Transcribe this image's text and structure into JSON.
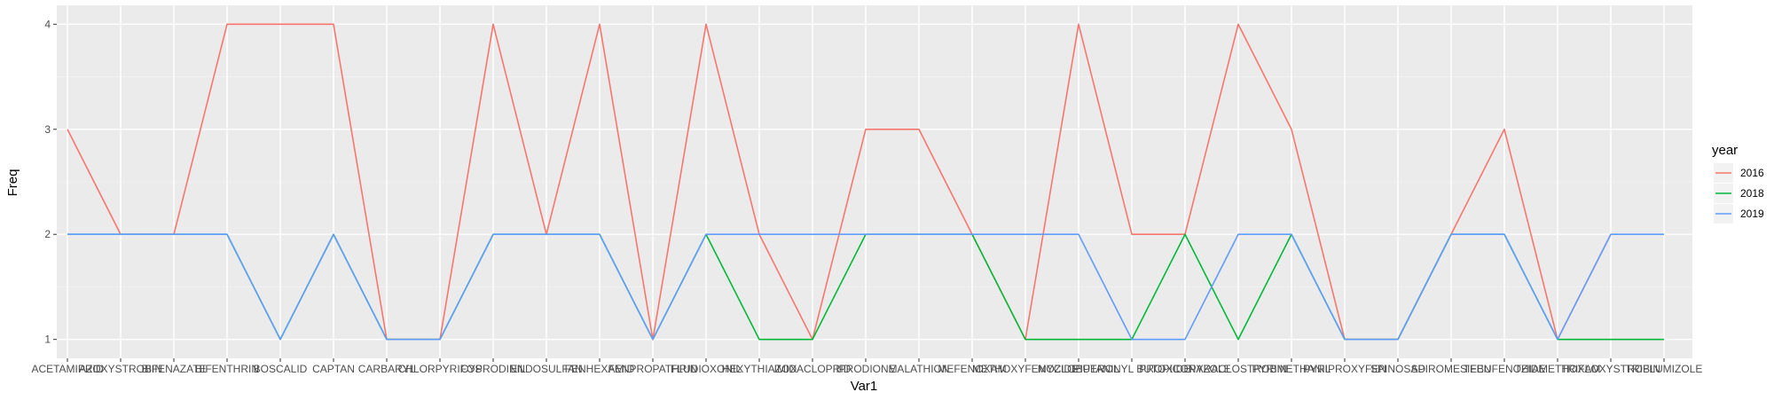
{
  "chart_data": {
    "type": "line",
    "title": "",
    "xlabel": "Var1",
    "ylabel": "Freq",
    "categories": [
      "ACETAMIPRID",
      "AZOXYSTROBIN",
      "BIFENAZATE",
      "BIFENTHRIN",
      "BOSCALID",
      "CAPTAN",
      "CARBARYL",
      "CHLORPYRIFOS",
      "CYPRODINIL",
      "ENDOSULFAN",
      "FENHEXAMID",
      "FENPROPATHRIN",
      "FLUDIOXONIL",
      "HEXYTHIAZOX",
      "IMIDACLOPRID",
      "IPRODIONE",
      "MALATHION",
      "MEFENOXAM",
      "METHOXYFENOZIDE",
      "MYCLOBUTANIL",
      "PIPERONYL BUTOXIDE",
      "PROPICONAZOLE",
      "PYRACLOSTROBIN",
      "PYRIMETHANIL",
      "PYRIPROXYFEN",
      "SPINOSAD",
      "SPIROMESIFEN",
      "TEBUFENOZIDE",
      "THIAMETHOXAM",
      "TRIFLOXYSTROBIN",
      "TRIFLUMIZOLE"
    ],
    "yticks": [
      1,
      2,
      3,
      4
    ],
    "ylim": [
      0.82,
      4.18
    ],
    "grid": true,
    "legend": {
      "title": "year",
      "position": "right"
    },
    "series": [
      {
        "name": "2016",
        "color": "#F8766D",
        "values": [
          3,
          2,
          2,
          4,
          4,
          4,
          1,
          1,
          4,
          2,
          4,
          1,
          4,
          2,
          1,
          3,
          3,
          2,
          1,
          4,
          2,
          2,
          4,
          3,
          1,
          1,
          2,
          3,
          1,
          2,
          null
        ]
      },
      {
        "name": "2018",
        "color": "#00BA38",
        "values": [
          2,
          2,
          2,
          2,
          1,
          2,
          1,
          1,
          2,
          2,
          2,
          1,
          2,
          1,
          1,
          2,
          2,
          2,
          1,
          1,
          1,
          2,
          1,
          2,
          1,
          1,
          2,
          2,
          1,
          1,
          1
        ]
      },
      {
        "name": "2019",
        "color": "#619CFF",
        "values": [
          2,
          2,
          2,
          2,
          1,
          2,
          1,
          1,
          2,
          2,
          2,
          1,
          2,
          2,
          2,
          2,
          2,
          2,
          2,
          2,
          1,
          1,
          2,
          2,
          1,
          1,
          2,
          2,
          1,
          2,
          2
        ]
      }
    ]
  }
}
